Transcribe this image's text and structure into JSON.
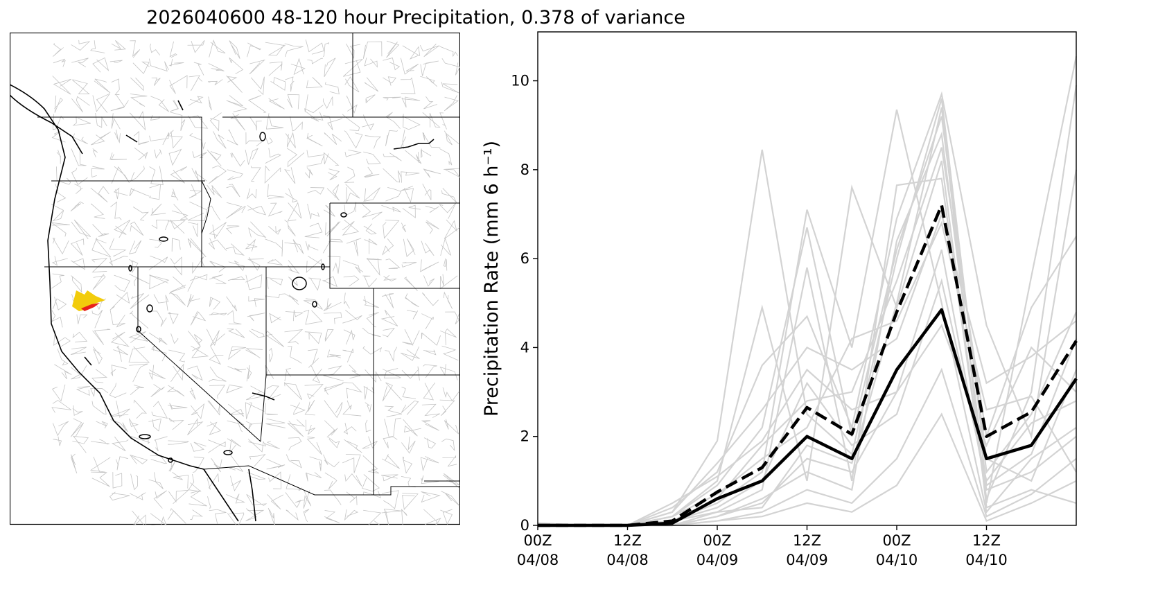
{
  "title": "2026040600 48-120 hour Precipitation, 0.378 of variance",
  "colors": {
    "member_line": "#d3d3d3",
    "mean_line": "#000000",
    "map_border": "#000000",
    "basin_lines": "#c0c0c0",
    "highlight_yellow": "#f2cc0c",
    "highlight_red": "#e8201a"
  },
  "map": {
    "region": "Western United States",
    "highlight_basin": "yellow basin with red sub-basin in northern California"
  },
  "chart_data": {
    "type": "line",
    "ylabel": "Precipitation Rate (mm 6 h⁻¹)",
    "xlabel": "",
    "ylim": [
      0,
      11.1
    ],
    "xlim": [
      0,
      12
    ],
    "y_ticks": [
      "0",
      "2",
      "4",
      "6",
      "8",
      "10"
    ],
    "x_ticks": [
      {
        "line1": "00Z",
        "line2": "04/08"
      },
      {
        "line1": "12Z",
        "line2": "04/08"
      },
      {
        "line1": "00Z",
        "line2": "04/09"
      },
      {
        "line1": "12Z",
        "line2": "04/09"
      },
      {
        "line1": "00Z",
        "line2": "04/10"
      },
      {
        "line1": "12Z",
        "line2": "04/10"
      }
    ],
    "x_tick_positions": [
      0,
      2,
      4,
      6,
      8,
      10
    ],
    "x": [
      0,
      1,
      2,
      3,
      4,
      5,
      6,
      7,
      8,
      9,
      10,
      11,
      12
    ],
    "series_mean_solid": [
      0.0,
      0.0,
      0.0,
      0.05,
      0.6,
      1.0,
      2.0,
      1.5,
      3.5,
      4.85,
      1.5,
      1.8,
      3.3
    ],
    "series_mean_dashed": [
      0.0,
      0.0,
      0.0,
      0.1,
      0.75,
      1.3,
      2.65,
      2.05,
      4.8,
      7.2,
      2.0,
      2.55,
      4.15
    ],
    "members": [
      [
        0.05,
        0.0,
        0.0,
        0.3,
        1.9,
        8.45,
        2.5,
        1.6,
        6.0,
        9.6,
        1.2,
        2.5,
        4.8
      ],
      [
        0.0,
        0.0,
        0.0,
        0.1,
        0.5,
        1.2,
        7.1,
        4.0,
        9.35,
        5.0,
        0.3,
        1.5,
        2.2
      ],
      [
        0.0,
        0.0,
        0.0,
        0.2,
        1.0,
        4.9,
        1.0,
        7.6,
        4.9,
        8.2,
        0.5,
        5.6,
        10.55
      ],
      [
        0.0,
        0.0,
        0.0,
        0.0,
        0.3,
        0.8,
        5.8,
        1.0,
        7.65,
        7.8,
        0.6,
        3.0,
        9.9
      ],
      [
        0.0,
        0.0,
        0.0,
        0.4,
        1.2,
        3.6,
        4.7,
        2.2,
        6.9,
        9.7,
        4.5,
        2.0,
        8.0
      ],
      [
        0.05,
        0.0,
        0.0,
        0.0,
        0.2,
        0.5,
        1.5,
        1.2,
        3.0,
        6.2,
        0.8,
        1.2,
        2.0
      ],
      [
        0.0,
        0.0,
        0.0,
        0.1,
        0.6,
        1.8,
        2.8,
        3.0,
        5.5,
        8.5,
        2.0,
        4.9,
        6.5
      ],
      [
        0.0,
        0.0,
        0.0,
        0.2,
        0.9,
        2.2,
        6.7,
        2.0,
        6.2,
        9.2,
        1.5,
        1.0,
        3.5
      ],
      [
        0.0,
        0.0,
        0.0,
        0.0,
        0.1,
        0.3,
        0.8,
        0.5,
        1.5,
        3.5,
        0.2,
        0.7,
        1.5
      ],
      [
        0.0,
        0.0,
        0.0,
        0.3,
        1.4,
        2.6,
        4.0,
        3.5,
        4.2,
        7.0,
        3.2,
        3.8,
        4.6
      ],
      [
        0.0,
        0.0,
        0.0,
        0.1,
        0.4,
        1.0,
        3.2,
        1.8,
        2.5,
        5.5,
        1.0,
        2.3,
        2.8
      ],
      [
        0.0,
        0.0,
        0.0,
        0.0,
        0.2,
        0.6,
        1.2,
        0.8,
        6.4,
        8.8,
        0.9,
        1.6,
        4.2
      ],
      [
        0.0,
        0.0,
        0.0,
        0.2,
        0.7,
        1.5,
        2.2,
        4.2,
        4.6,
        6.8,
        2.6,
        2.9,
        1.2
      ],
      [
        0.0,
        0.0,
        0.0,
        0.1,
        0.3,
        0.4,
        1.8,
        1.4,
        5.0,
        9.4,
        0.4,
        0.8,
        0.5
      ],
      [
        0.0,
        0.0,
        0.0,
        0.5,
        1.1,
        1.9,
        3.5,
        2.6,
        3.0,
        4.5,
        1.8,
        4.0,
        3.0
      ],
      [
        0.0,
        0.0,
        0.0,
        0.0,
        0.1,
        0.2,
        0.5,
        0.3,
        0.9,
        2.5,
        0.1,
        0.5,
        1.0
      ]
    ]
  }
}
